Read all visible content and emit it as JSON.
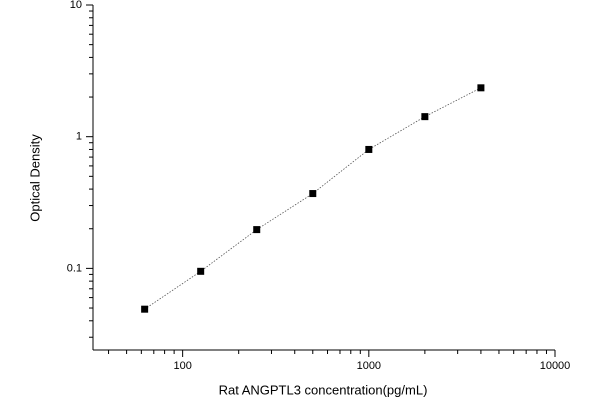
{
  "chart_data": {
    "type": "scatter",
    "x_label": "Rat ANGPTL3 concentration(pg/mL)",
    "y_label": "Optical Density",
    "x": [
      62.5,
      125,
      250,
      500,
      1000,
      2000,
      4000
    ],
    "values": [
      0.049,
      0.095,
      0.197,
      0.37,
      0.8,
      1.42,
      2.35
    ],
    "color": "#000000",
    "fit_line": true,
    "xlog": true,
    "ylog": true,
    "xlim": [
      33,
      10000
    ],
    "ylim": [
      0.024,
      10
    ],
    "xticks": [
      100,
      1000,
      10000
    ],
    "yticks": [
      0.1,
      1,
      10
    ]
  }
}
